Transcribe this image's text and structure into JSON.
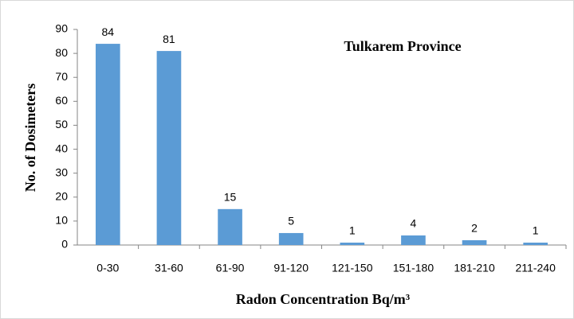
{
  "chart_data": {
    "type": "bar",
    "title": "Tulkarem Province",
    "x_label": "Radon Concentration Bq/m³",
    "y_label": "No. of Dosimeters",
    "categories": [
      "0-30",
      "31-60",
      "61-90",
      "91-120",
      "121-150",
      "151-180",
      "181-210",
      "211-240"
    ],
    "values": [
      84,
      81,
      15,
      5,
      1,
      4,
      2,
      1
    ],
    "color": "#5b9bd5",
    "ylim": [
      0,
      90
    ],
    "yticks": [
      0,
      10,
      20,
      30,
      40,
      50,
      60,
      70,
      80,
      90
    ],
    "grid": false
  }
}
